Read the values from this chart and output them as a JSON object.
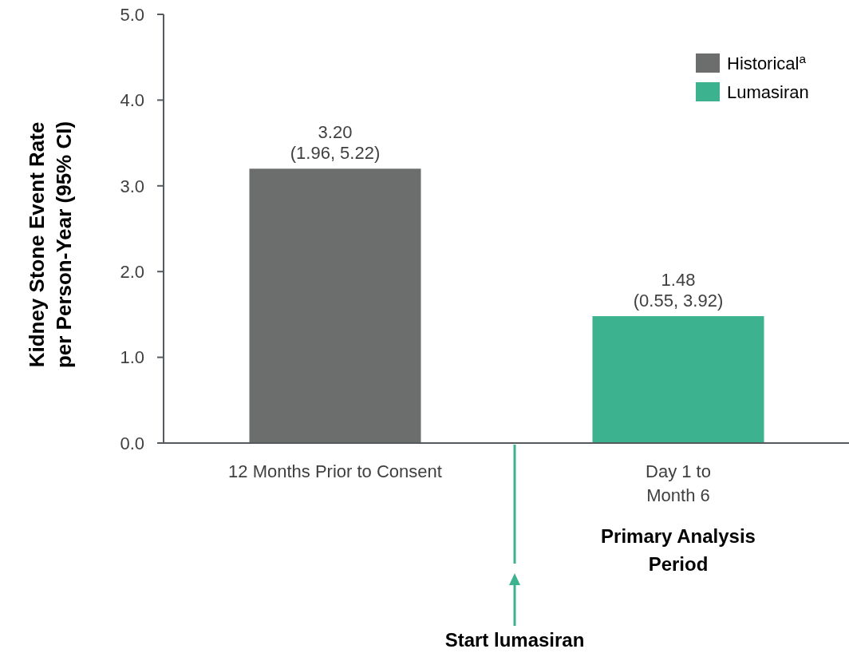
{
  "chart_data": {
    "type": "bar",
    "ylabel": "Kidney Stone Event Rate\nper Person-Year (95% CI)",
    "categories": [
      "12 Months Prior to Consent",
      "Day 1 to\nMonth 6"
    ],
    "series": [
      {
        "name": "Historical$^{a}$",
        "color": "#6b6e6c",
        "values": [
          3.2,
          null
        ],
        "value_labels": [
          "3.20\n(1.96, 5.22)",
          null
        ]
      },
      {
        "name": "Lumasiran",
        "color": "#3cb28f",
        "values": [
          null,
          1.48
        ],
        "value_labels": [
          null,
          "1.48\n(0.55, 3.92)"
        ]
      }
    ],
    "ylim": [
      0,
      5
    ],
    "yticks": [
      {
        "value": 0,
        "label": "0.0"
      },
      {
        "value": 1,
        "label": "1.0"
      },
      {
        "value": 2,
        "label": "2.0"
      },
      {
        "value": 3,
        "label": "3.0"
      },
      {
        "value": 4,
        "label": "4.0"
      },
      {
        "value": 5,
        "label": "5.0"
      }
    ],
    "grid": false,
    "legend": "top right",
    "annotations": [
      "Primary Analysis\nPeriod",
      "Start lumasiran"
    ]
  }
}
